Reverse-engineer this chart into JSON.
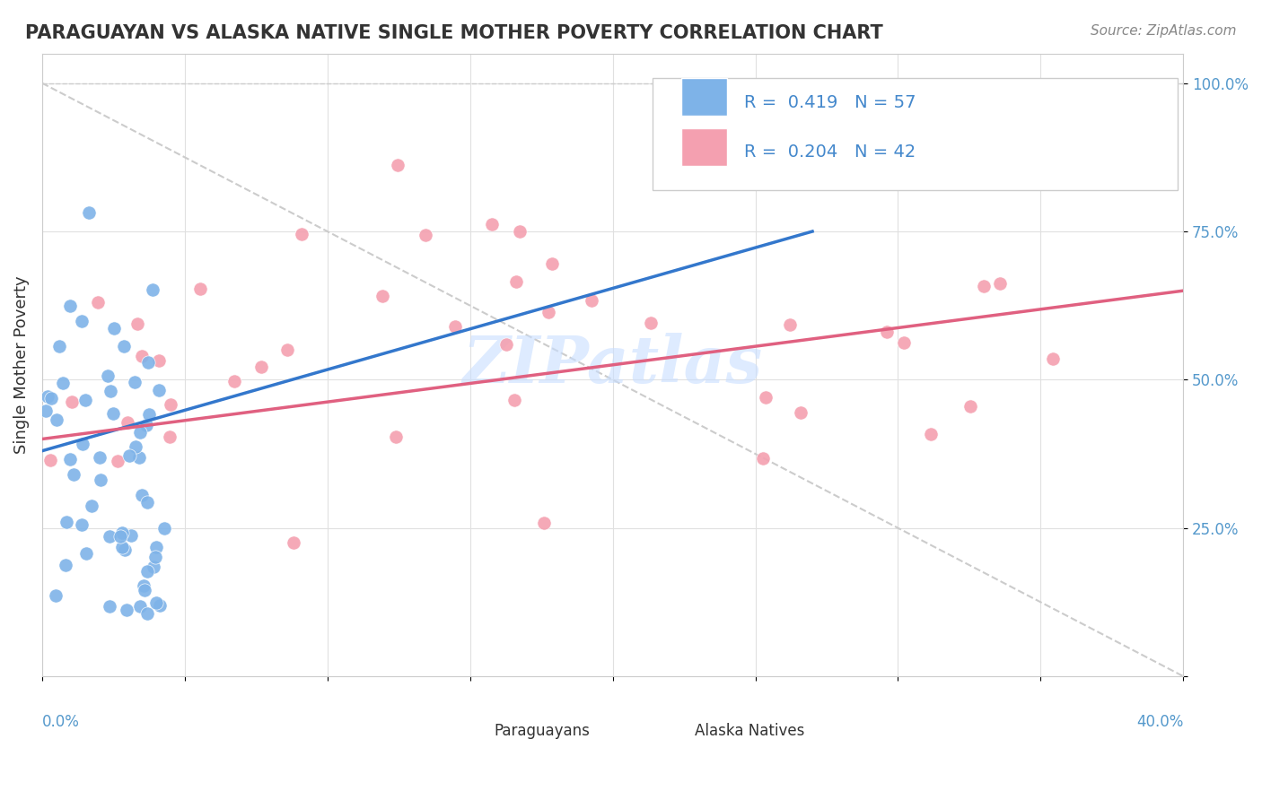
{
  "title": "PARAGUAYAN VS ALASKA NATIVE SINGLE MOTHER POVERTY CORRELATION CHART",
  "source_text": "Source: ZipAtlas.com",
  "ylabel": "Single Mother Poverty",
  "xlim": [
    0.0,
    0.4
  ],
  "ylim": [
    0.0,
    1.05
  ],
  "watermark": "ZIPatlas",
  "blue_color": "#7EB3E8",
  "pink_color": "#F4A0B0",
  "blue_line_color": "#3377CC",
  "pink_line_color": "#E06080",
  "diag_line_color": "#CCCCCC",
  "background_color": "#FFFFFF",
  "plot_bg_color": "#FFFFFF",
  "legend_blue_text": "R =  0.419   N = 57",
  "legend_pink_text": "R =  0.204   N = 42",
  "legend_text_color": "#4488CC"
}
